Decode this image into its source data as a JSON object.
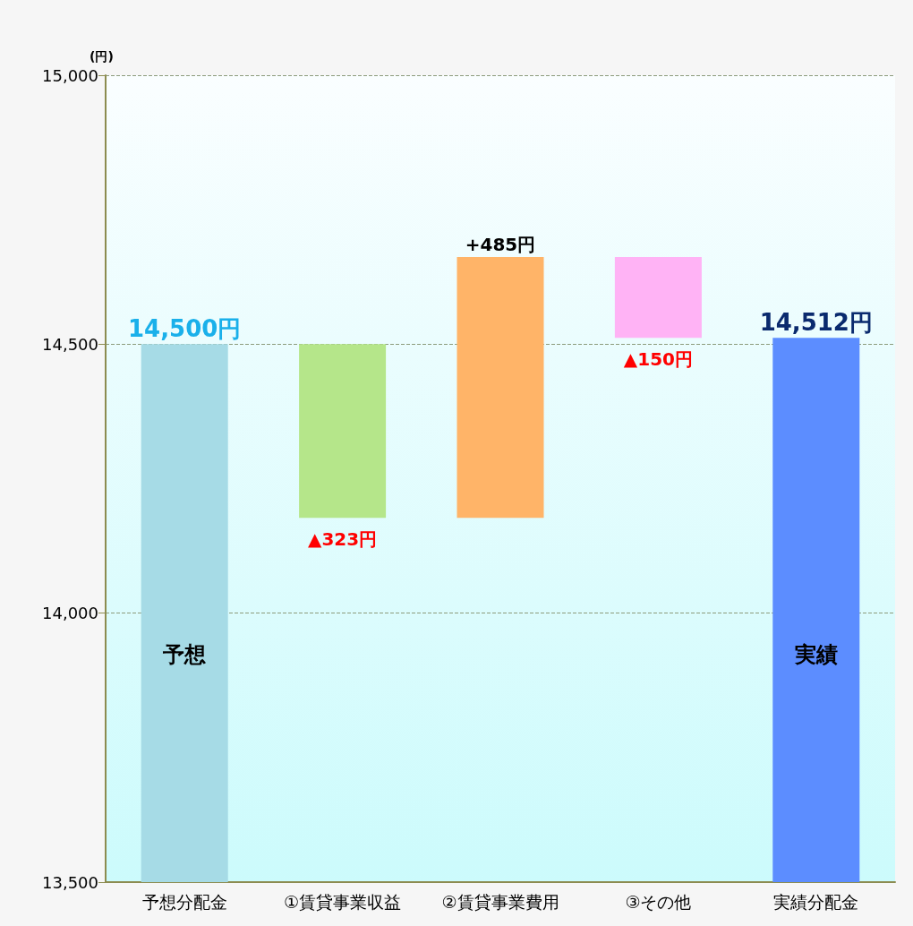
{
  "chart_data": {
    "type": "bar",
    "ylabel": "(円)",
    "categories": [
      "予想分配金",
      "①賃貸事業収益",
      "②賃貸事業費用",
      "③その他",
      "実績分配金"
    ],
    "base": [
      13500,
      14177,
      14177,
      14512,
      13500
    ],
    "values": [
      1000,
      323,
      485,
      150,
      1012
    ],
    "colors": [
      "#a6dbe6",
      "#b5e68a",
      "#ffb468",
      "#ffb3f5",
      "#5c8dff"
    ],
    "value_labels": [
      "14,500円",
      "▲323円",
      "+485円",
      "▲150円",
      "14,512円"
    ],
    "annotations": [
      "予想",
      "実績"
    ],
    "ylim": [
      13500,
      15000
    ],
    "yticks": [
      {
        "value": 13500,
        "label": "13,500"
      },
      {
        "value": 14000,
        "label": "14,000"
      },
      {
        "value": 14500,
        "label": "14,500"
      },
      {
        "value": 15000,
        "label": "15,000"
      }
    ],
    "grid": "y"
  }
}
